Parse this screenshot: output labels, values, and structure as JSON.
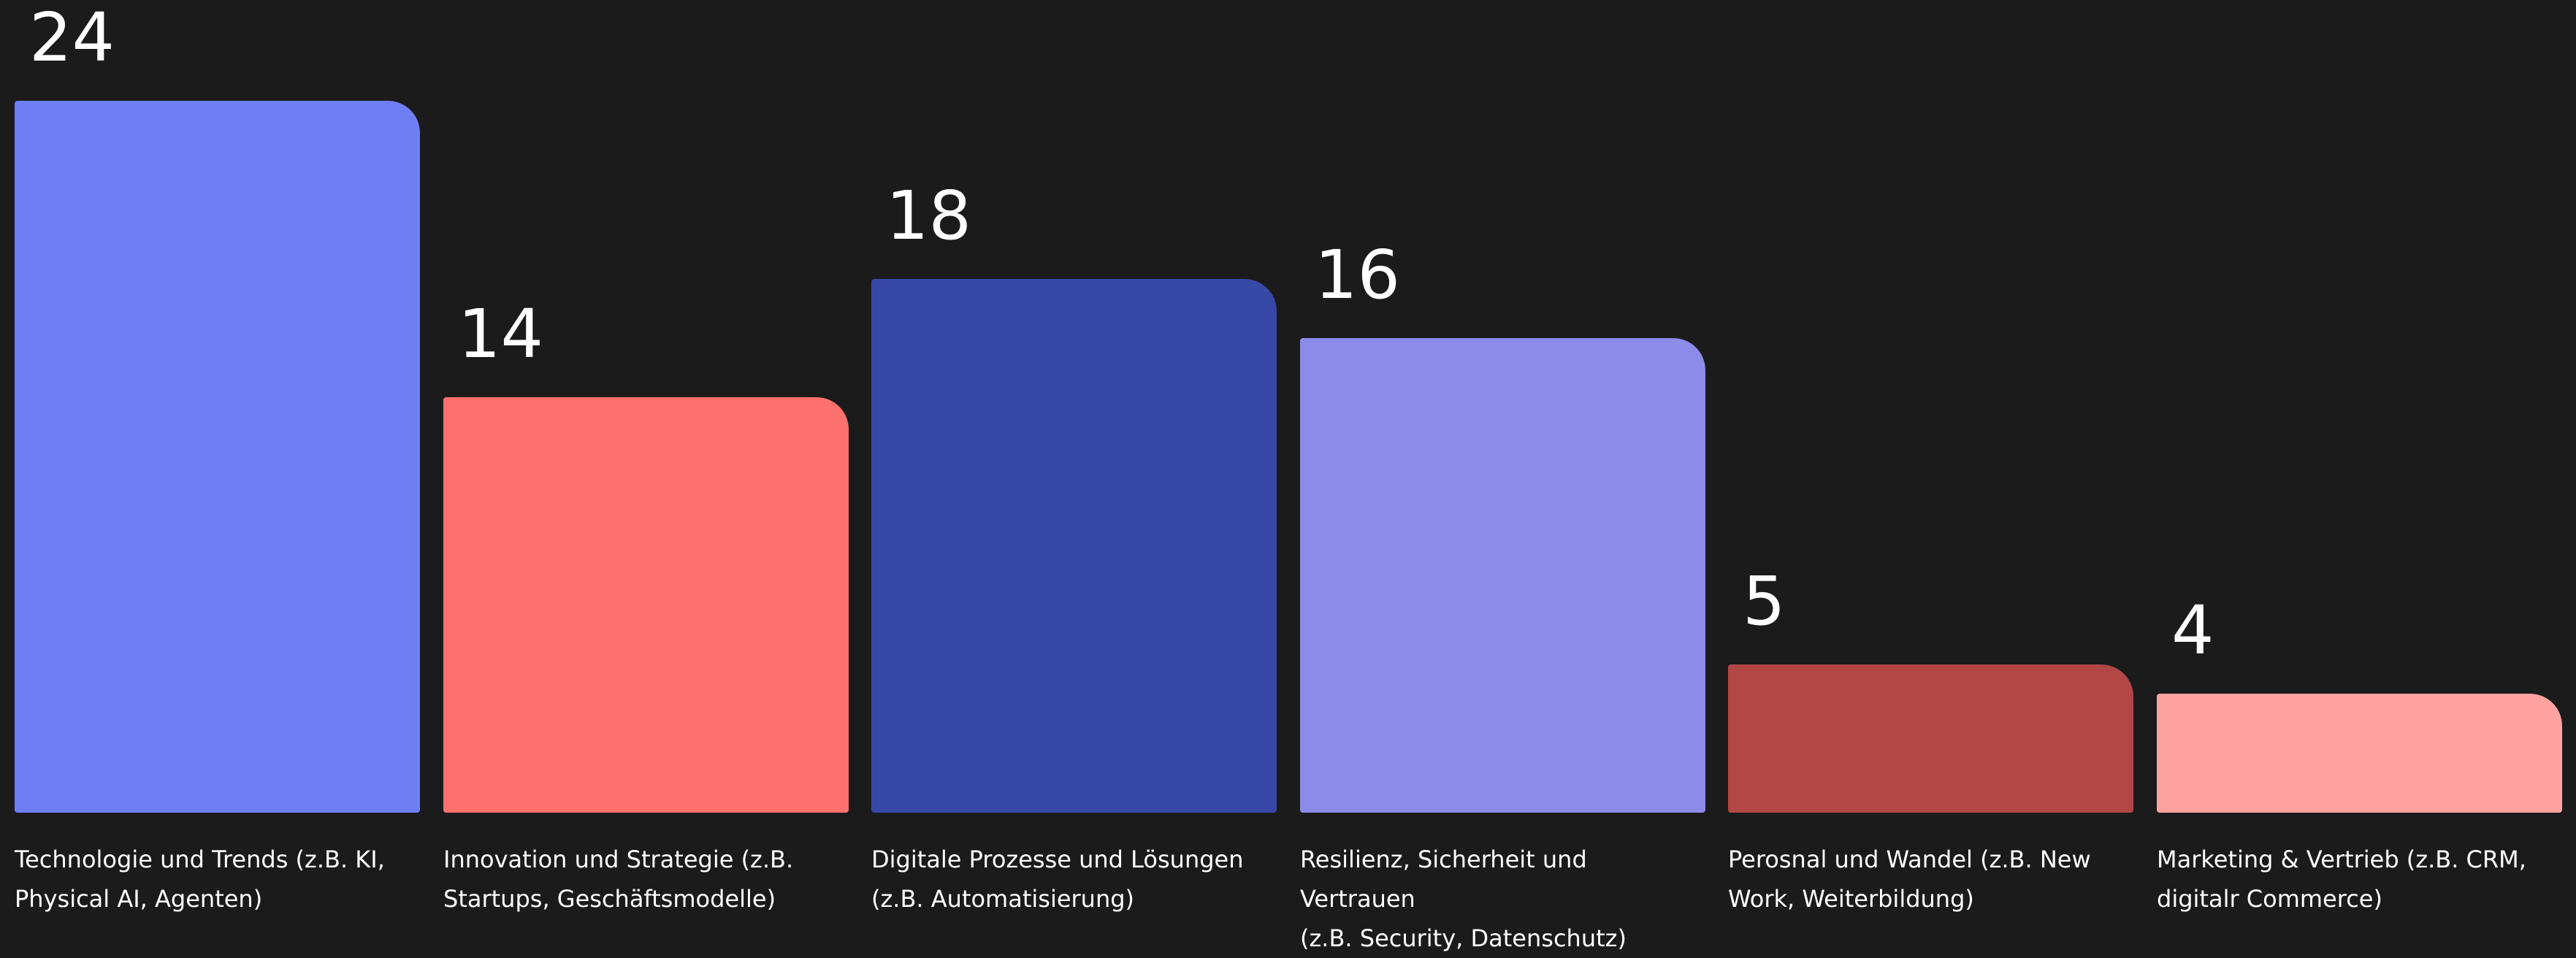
{
  "chart_data": {
    "type": "bar",
    "title": "",
    "xlabel": "",
    "ylabel": "",
    "ylim": [
      0,
      24
    ],
    "grid": false,
    "categories": [
      "Technologie und Trends (z.B. KI,\nPhysical AI, Agenten)",
      "Innovation und Strategie (z.B.\nStartups, Geschäftsmodelle)",
      "Digitale Prozesse und Lösungen\n(z.B. Automatisierung)",
      "Resilienz, Sicherheit und Vertrauen\n(z.B. Security, Datenschutz)",
      "Perosnal und Wandel (z.B. New\nWork, Weiterbildung)",
      "Marketing & Vertrieb (z.B. CRM,\ndigitalr Commerce)"
    ],
    "values": [
      24,
      14,
      18,
      16,
      5,
      4
    ],
    "colors": [
      "#6f7ff3",
      "#ff716e",
      "#3848a7",
      "#8b8ce9",
      "#b24746",
      "#ffa3a1"
    ]
  }
}
